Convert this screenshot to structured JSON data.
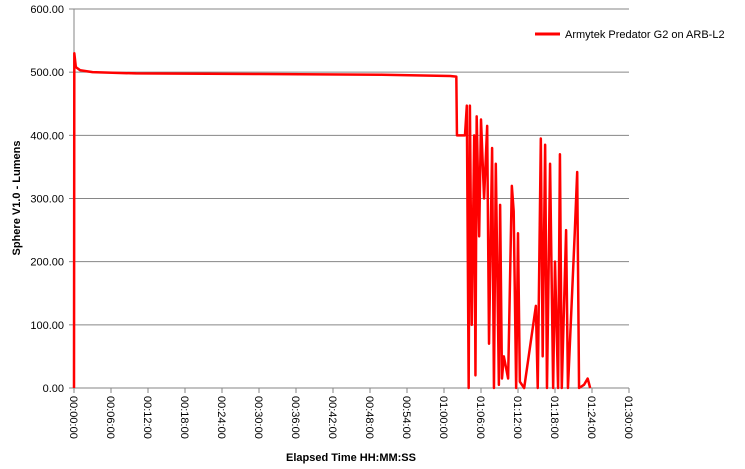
{
  "chart_data": {
    "type": "line",
    "xlabel": "Elapsed Time HH:MM:SS",
    "ylabel": "Sphere V1.0 - Lumens",
    "x": [
      0,
      0.05,
      0.3,
      1,
      3,
      10,
      30,
      50,
      61,
      62,
      62.1,
      63.4,
      63.7,
      64.0,
      64.2,
      64.5,
      64.9,
      65.1,
      65.3,
      65.7,
      66.0,
      66.5,
      67.0,
      67.3,
      67.8,
      68.1,
      68.4,
      68.9,
      69.1,
      69.4,
      69.7,
      70.4,
      71.0,
      71.3,
      71.7,
      72.0,
      72.3,
      73.0,
      74.9,
      75.2,
      75.7,
      76.0,
      76.4,
      76.7,
      77.2,
      77.7,
      78.0,
      78.5,
      78.8,
      79.1,
      79.8,
      80.1,
      81.2,
      81.6,
      81.9,
      82.7,
      83.3,
      83.7
    ],
    "series": [
      {
        "name": "Armytek Predator G2 on ARB-L2",
        "color": "#ff0000",
        "values": [
          0,
          530,
          508,
          503,
          500,
          498,
          497,
          496,
          494,
          493,
          400,
          400,
          447,
          0,
          447,
          100,
          400,
          20,
          430,
          240,
          425,
          300,
          415,
          70,
          380,
          0,
          355,
          5,
          290,
          15,
          50,
          15,
          320,
          280,
          0,
          245,
          10,
          0,
          130,
          0,
          395,
          50,
          385,
          0,
          355,
          0,
          200,
          0,
          370,
          0,
          250,
          0,
          245,
          342,
          0,
          5,
          15,
          0
        ]
      }
    ],
    "xlim": [
      0,
      90
    ],
    "xticks": [
      {
        "value": 0,
        "label": "00:00:00"
      },
      {
        "value": 6,
        "label": "00:06:00"
      },
      {
        "value": 12,
        "label": "00:12:00"
      },
      {
        "value": 18,
        "label": "00:18:00"
      },
      {
        "value": 24,
        "label": "00:24:00"
      },
      {
        "value": 30,
        "label": "00:30:00"
      },
      {
        "value": 36,
        "label": "00:36:00"
      },
      {
        "value": 42,
        "label": "00:42:00"
      },
      {
        "value": 48,
        "label": "00:48:00"
      },
      {
        "value": 54,
        "label": "00:54:00"
      },
      {
        "value": 60,
        "label": "01:00:00"
      },
      {
        "value": 66,
        "label": "01:06:00"
      },
      {
        "value": 72,
        "label": "01:12:00"
      },
      {
        "value": 78,
        "label": "01:18:00"
      },
      {
        "value": 84,
        "label": "01:24:00"
      },
      {
        "value": 90,
        "label": "01:30:00"
      }
    ],
    "ylim": [
      0,
      600
    ],
    "yticks": [
      {
        "value": 0,
        "label": "0.00"
      },
      {
        "value": 100,
        "label": "100.00"
      },
      {
        "value": 200,
        "label": "200.00"
      },
      {
        "value": 300,
        "label": "300.00"
      },
      {
        "value": 400,
        "label": "400.00"
      },
      {
        "value": 500,
        "label": "500.00"
      },
      {
        "value": 600,
        "label": "600.00"
      }
    ],
    "grid": true,
    "legend": "top-right"
  }
}
